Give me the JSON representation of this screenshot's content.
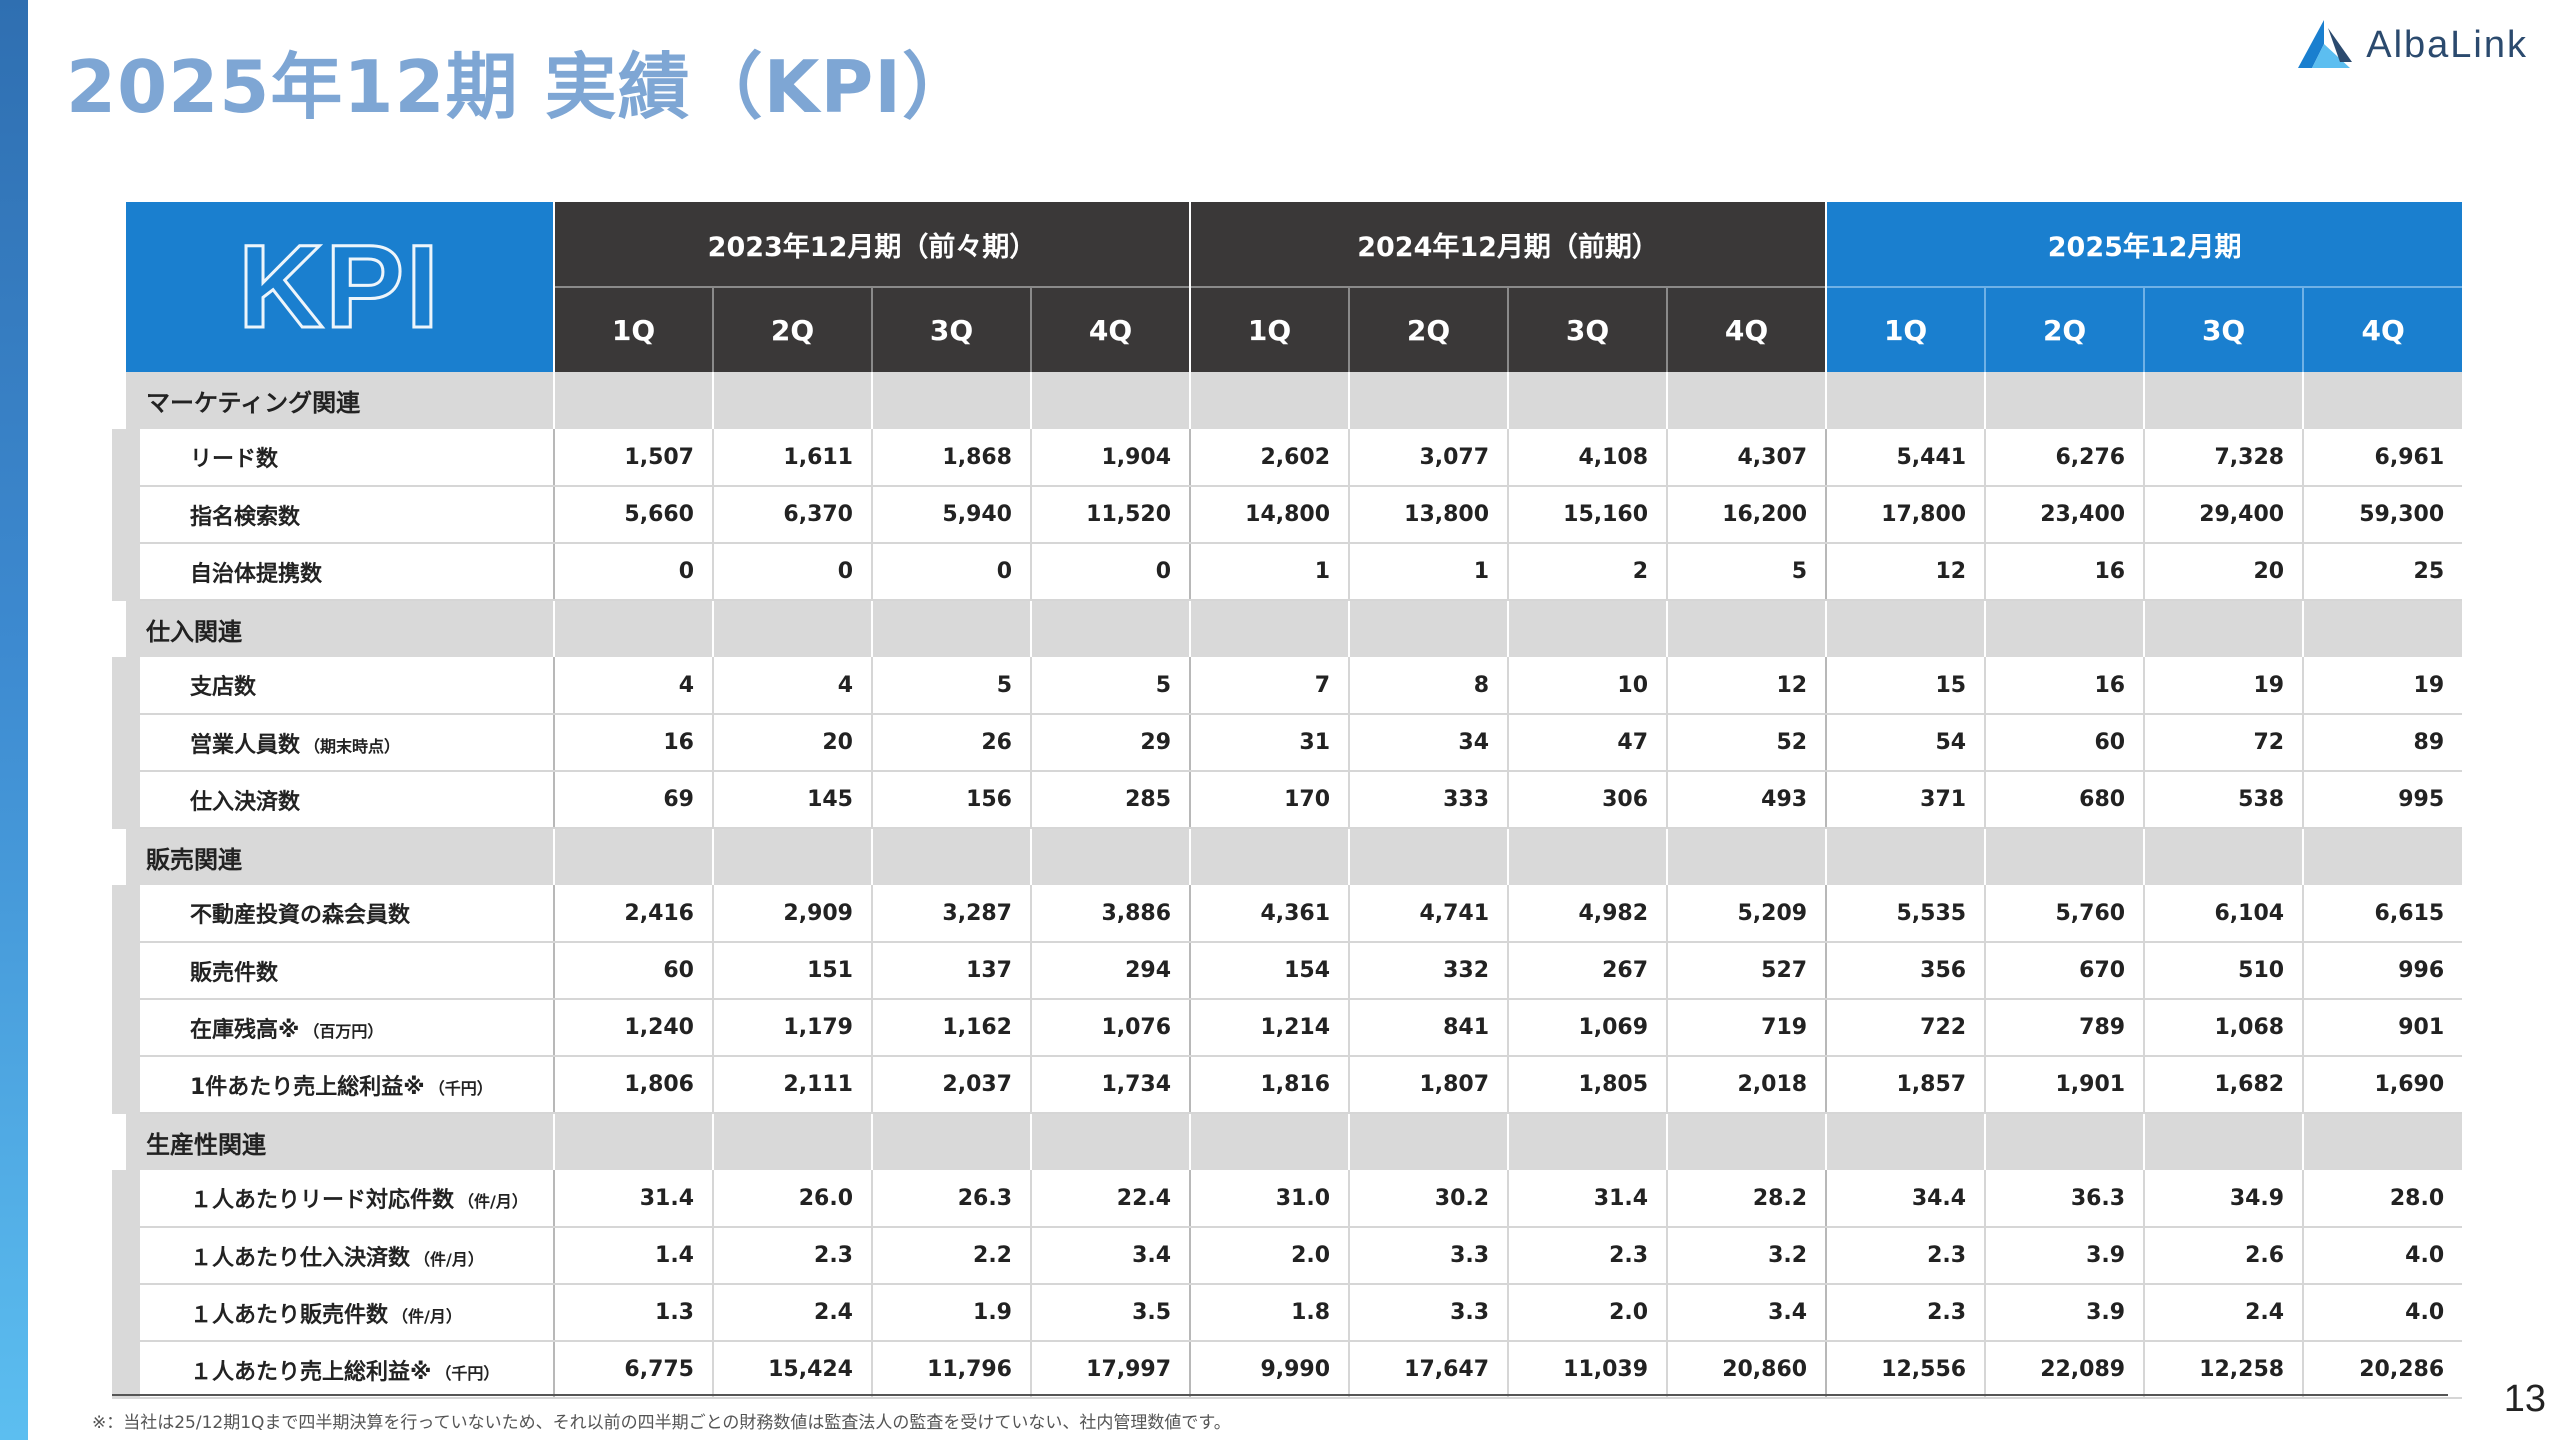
{
  "page": {
    "title": "2025年12期 実績（KPI）",
    "logo_text": "AlbaLink",
    "page_number": "13",
    "footnote": "※：当社は25/12期1Qまで四半期決算を行っていないため、それ以前の四半期ごとの財務数値は監査法人の監査を受けていない、社内管理数値です。"
  },
  "colors": {
    "accent_blue": "#1a7fcf",
    "header_dark": "#3a3838",
    "section_gray": "#d9d9d9",
    "title_blue": "#7ea6d4"
  },
  "table": {
    "kpi_label": "KPI",
    "periods": [
      "2023年12月期（前々期）",
      "2024年12月期（前期）",
      "2025年12月期"
    ],
    "quarters": [
      "1Q",
      "2Q",
      "3Q",
      "4Q",
      "1Q",
      "2Q",
      "3Q",
      "4Q",
      "1Q",
      "2Q",
      "3Q",
      "4Q"
    ],
    "sections": [
      {
        "name": "マーケティング関連",
        "rows": [
          {
            "label": "リード数",
            "sub": "",
            "values": [
              "1,507",
              "1,611",
              "1,868",
              "1,904",
              "2,602",
              "3,077",
              "4,108",
              "4,307",
              "5,441",
              "6,276",
              "7,328",
              "6,961"
            ]
          },
          {
            "label": "指名検索数",
            "sub": "",
            "values": [
              "5,660",
              "6,370",
              "5,940",
              "11,520",
              "14,800",
              "13,800",
              "15,160",
              "16,200",
              "17,800",
              "23,400",
              "29,400",
              "59,300"
            ]
          },
          {
            "label": "自治体提携数",
            "sub": "",
            "values": [
              "0",
              "0",
              "0",
              "0",
              "1",
              "1",
              "2",
              "5",
              "12",
              "16",
              "20",
              "25"
            ]
          }
        ]
      },
      {
        "name": "仕入関連",
        "rows": [
          {
            "label": "支店数",
            "sub": "",
            "values": [
              "4",
              "4",
              "5",
              "5",
              "7",
              "8",
              "10",
              "12",
              "15",
              "16",
              "19",
              "19"
            ]
          },
          {
            "label": "営業人員数",
            "sub": "（期末時点）",
            "values": [
              "16",
              "20",
              "26",
              "29",
              "31",
              "34",
              "47",
              "52",
              "54",
              "60",
              "72",
              "89"
            ]
          },
          {
            "label": "仕入決済数",
            "sub": "",
            "values": [
              "69",
              "145",
              "156",
              "285",
              "170",
              "333",
              "306",
              "493",
              "371",
              "680",
              "538",
              "995"
            ]
          }
        ]
      },
      {
        "name": "販売関連",
        "rows": [
          {
            "label": "不動産投資の森会員数",
            "sub": "",
            "values": [
              "2,416",
              "2,909",
              "3,287",
              "3,886",
              "4,361",
              "4,741",
              "4,982",
              "5,209",
              "5,535",
              "5,760",
              "6,104",
              "6,615"
            ]
          },
          {
            "label": "販売件数",
            "sub": "",
            "values": [
              "60",
              "151",
              "137",
              "294",
              "154",
              "332",
              "267",
              "527",
              "356",
              "670",
              "510",
              "996"
            ]
          },
          {
            "label": "在庫残高※",
            "sub": "（百万円）",
            "values": [
              "1,240",
              "1,179",
              "1,162",
              "1,076",
              "1,214",
              "841",
              "1,069",
              "719",
              "722",
              "789",
              "1,068",
              "901"
            ]
          },
          {
            "label": "1件あたり売上総利益※",
            "sub": "（千円）",
            "values": [
              "1,806",
              "2,111",
              "2,037",
              "1,734",
              "1,816",
              "1,807",
              "1,805",
              "2,018",
              "1,857",
              "1,901",
              "1,682",
              "1,690"
            ]
          }
        ]
      },
      {
        "name": "生産性関連",
        "rows": [
          {
            "label": "１人あたりリード対応件数",
            "sub": "（件/月）",
            "values": [
              "31.4",
              "26.0",
              "26.3",
              "22.4",
              "31.0",
              "30.2",
              "31.4",
              "28.2",
              "34.4",
              "36.3",
              "34.9",
              "28.0"
            ]
          },
          {
            "label": "１人あたり仕入決済数",
            "sub": "（件/月）",
            "values": [
              "1.4",
              "2.3",
              "2.2",
              "3.4",
              "2.0",
              "3.3",
              "2.3",
              "3.2",
              "2.3",
              "3.9",
              "2.6",
              "4.0"
            ]
          },
          {
            "label": "１人あたり販売件数",
            "sub": "（件/月）",
            "values": [
              "1.3",
              "2.4",
              "1.9",
              "3.5",
              "1.8",
              "3.3",
              "2.0",
              "3.4",
              "2.3",
              "3.9",
              "2.4",
              "4.0"
            ]
          },
          {
            "label": "１人あたり売上総利益※",
            "sub": "（千円）",
            "values": [
              "6,775",
              "15,424",
              "11,796",
              "17,997",
              "9,990",
              "17,647",
              "11,039",
              "20,860",
              "12,556",
              "22,089",
              "12,258",
              "20,286"
            ]
          }
        ]
      }
    ]
  }
}
